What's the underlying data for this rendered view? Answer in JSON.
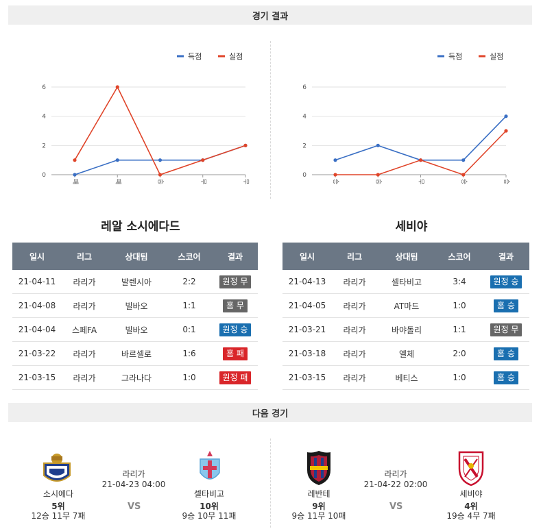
{
  "sections": {
    "results_title": "경기 결과",
    "next_title": "다음 경기"
  },
  "left_team": {
    "name": "레알 소시에다드",
    "legend": [
      "득점",
      "실점"
    ],
    "chart_data": {
      "type": "line",
      "categories": [
        "패",
        "패",
        "승",
        "무",
        "무"
      ],
      "yticks": [
        0,
        2,
        4,
        6
      ],
      "ylim": [
        0,
        6
      ],
      "series": [
        {
          "name": "득점",
          "color": "#3a6fc4",
          "values": [
            0,
            1,
            1,
            1,
            2
          ]
        },
        {
          "name": "실점",
          "color": "#e0452a",
          "values": [
            1,
            6,
            0,
            1,
            2
          ]
        }
      ]
    },
    "table": {
      "headers": [
        "일시",
        "리그",
        "상대팀",
        "스코어",
        "결과"
      ],
      "rows": [
        {
          "date": "21-04-11",
          "league": "라리가",
          "opponent": "발렌시아",
          "score": "2:2",
          "result": "원정 무",
          "color": "#666666"
        },
        {
          "date": "21-04-08",
          "league": "라리가",
          "opponent": "빌바오",
          "score": "1:1",
          "result": "홈 무",
          "color": "#666666"
        },
        {
          "date": "21-04-04",
          "league": "스페FA",
          "opponent": "빌바오",
          "score": "0:1",
          "result": "원정 승",
          "color": "#1a6fb0"
        },
        {
          "date": "21-03-22",
          "league": "라리가",
          "opponent": "바르셀로",
          "score": "1:6",
          "result": "홈 패",
          "color": "#d9262a"
        },
        {
          "date": "21-03-15",
          "league": "라리가",
          "opponent": "그라나다",
          "score": "1:0",
          "result": "원정 패",
          "color": "#d9262a"
        }
      ]
    }
  },
  "right_team": {
    "name": "세비야",
    "legend": [
      "득점",
      "실점"
    ],
    "chart_data": {
      "type": "line",
      "categories": [
        "승",
        "승",
        "무",
        "승",
        "승"
      ],
      "yticks": [
        0,
        2,
        4,
        6
      ],
      "ylim": [
        0,
        6
      ],
      "series": [
        {
          "name": "득점",
          "color": "#3a6fc4",
          "values": [
            1,
            2,
            1,
            1,
            4
          ]
        },
        {
          "name": "실점",
          "color": "#e0452a",
          "values": [
            0,
            0,
            1,
            0,
            3
          ]
        }
      ]
    },
    "table": {
      "headers": [
        "일시",
        "리그",
        "상대팀",
        "스코어",
        "결과"
      ],
      "rows": [
        {
          "date": "21-04-13",
          "league": "라리가",
          "opponent": "셀타비고",
          "score": "3:4",
          "result": "원정 승",
          "color": "#1a6fb0"
        },
        {
          "date": "21-04-05",
          "league": "라리가",
          "opponent": "AT마드",
          "score": "1:0",
          "result": "홈 승",
          "color": "#1a6fb0"
        },
        {
          "date": "21-03-21",
          "league": "라리가",
          "opponent": "바야돌리",
          "score": "1:1",
          "result": "원정 무",
          "color": "#666666"
        },
        {
          "date": "21-03-18",
          "league": "라리가",
          "opponent": "엘체",
          "score": "2:0",
          "result": "홈 승",
          "color": "#1a6fb0"
        },
        {
          "date": "21-03-15",
          "league": "라리가",
          "opponent": "베티스",
          "score": "1:0",
          "result": "홈 승",
          "color": "#1a6fb0"
        }
      ]
    }
  },
  "next_left": {
    "home": {
      "name": "소시에다",
      "rank": "5위",
      "record": "12승 11무 7패"
    },
    "away": {
      "name": "셀타비고",
      "rank": "10위",
      "record": "9승 10무 11패"
    },
    "league": "라리가",
    "datetime": "21-04-23 04:00",
    "vs": "VS"
  },
  "next_right": {
    "home": {
      "name": "레반테",
      "rank": "9위",
      "record": "9승 11무 10패"
    },
    "away": {
      "name": "세비야",
      "rank": "4위",
      "record": "19승 4무 7패"
    },
    "league": "라리가",
    "datetime": "21-04-22 02:00",
    "vs": "VS"
  }
}
